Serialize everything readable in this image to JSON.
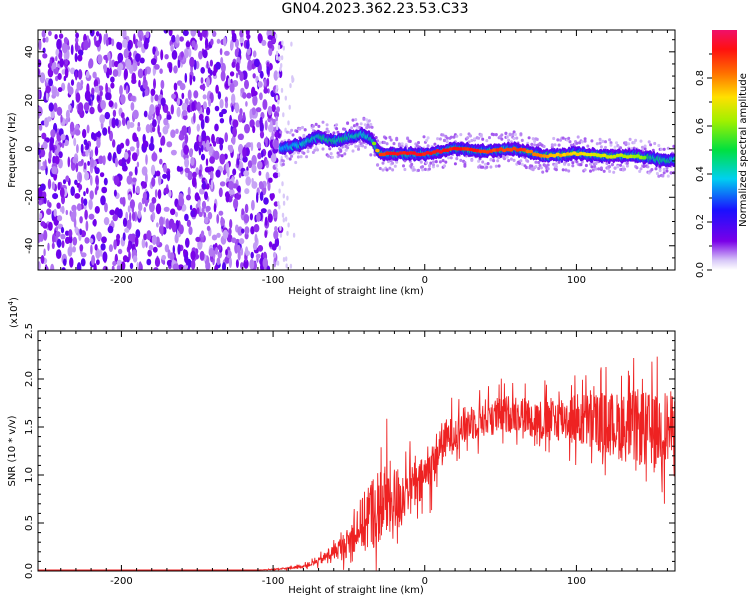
{
  "title": "GN04.2023.362.23.53.C33",
  "colors": {
    "snr_line": "#ee2222",
    "axis": "#000000"
  },
  "chart_data": [
    {
      "type": "heatmap",
      "xlabel": "Height of straight line (km)",
      "ylabel": "Frequency (Hz)",
      "xlim": [
        -255,
        165
      ],
      "ylim": [
        -50,
        49
      ],
      "x_ticks": [
        -200,
        -100,
        0,
        100
      ],
      "x_tick_labels": [
        "-200",
        "-100",
        "0",
        "100"
      ],
      "y_ticks": [
        -40,
        -20,
        0,
        20,
        40
      ],
      "y_tick_labels": [
        "-40",
        "-20",
        "0",
        "20",
        "40"
      ],
      "colorbar": {
        "label": "Normalized spectral amplitude",
        "range": [
          0,
          1
        ],
        "ticks": [
          0.0,
          0.2,
          0.4,
          0.6,
          0.8
        ],
        "tick_labels": [
          "0.0",
          "0.2",
          "0.4",
          "0.6",
          "0.8"
        ],
        "colormap": "rainbow (white → purple → blue → cyan → green → yellow → red → magenta)"
      },
      "noise_region": {
        "x": [
          -255,
          -95
        ],
        "y": [
          -50,
          49
        ],
        "amplitude": 0.15
      },
      "signal_ridge": {
        "x": [
          -95,
          -80,
          -70,
          -60,
          -50,
          -40,
          -35,
          -30,
          -20,
          0,
          20,
          40,
          60,
          80,
          100,
          120,
          140,
          160,
          165
        ],
        "frequency": [
          0,
          2,
          5,
          3,
          5,
          6,
          4,
          -2,
          -2,
          -2,
          0,
          -1,
          0,
          -3,
          -2,
          -3,
          -3,
          -5,
          -4
        ],
        "amplitude": [
          0.4,
          0.45,
          0.5,
          0.5,
          0.5,
          0.45,
          0.5,
          0.9,
          0.95,
          0.95,
          0.95,
          0.9,
          0.9,
          0.8,
          0.75,
          0.7,
          0.65,
          0.5,
          0.45
        ]
      }
    },
    {
      "type": "line",
      "xlabel": "Height of straight line (km)",
      "ylabel": "SNR (10 * v/v)",
      "y_multiplier": "(x10",
      "y_multiplier_exp": "4",
      "xlim": [
        -255,
        165
      ],
      "ylim": [
        0,
        2.5
      ],
      "x_ticks": [
        -200,
        -100,
        0,
        100
      ],
      "x_tick_labels": [
        "-200",
        "-100",
        "0",
        "100"
      ],
      "y_ticks": [
        0,
        0.5,
        1.0,
        1.5,
        2.0,
        2.5
      ],
      "y_tick_labels": [
        "0.0",
        "0.5",
        "1.0",
        "1.5",
        "2.0",
        "2.5"
      ],
      "series": [
        {
          "x": [
            -255,
            -150,
            -110,
            -95,
            -80,
            -70,
            -60,
            -50,
            -45,
            -40,
            -35,
            -30,
            -25,
            -20,
            -15,
            -10,
            -5,
            0,
            5,
            10,
            20,
            30,
            40,
            50,
            60,
            70,
            80,
            90,
            100,
            110,
            120,
            130,
            140,
            150,
            160,
            165
          ],
          "y": [
            0.01,
            0.01,
            0.01,
            0.02,
            0.05,
            0.1,
            0.2,
            0.3,
            0.45,
            0.5,
            0.6,
            0.7,
            0.75,
            0.7,
            0.8,
            0.9,
            0.85,
            1.0,
            1.1,
            1.3,
            1.45,
            1.55,
            1.6,
            1.62,
            1.65,
            1.6,
            1.55,
            1.6,
            1.58,
            1.55,
            1.55,
            1.5,
            1.5,
            1.45,
            1.5,
            1.45
          ],
          "noise_amplitude": [
            0,
            0,
            0,
            0.01,
            0.02,
            0.05,
            0.1,
            0.2,
            0.3,
            0.4,
            0.5,
            0.5,
            0.55,
            0.5,
            0.4,
            0.3,
            0.3,
            0.3,
            0.3,
            0.3,
            0.25,
            0.25,
            0.25,
            0.25,
            0.25,
            0.25,
            0.3,
            0.3,
            0.35,
            0.4,
            0.4,
            0.45,
            0.5,
            0.5,
            0.5,
            0.5
          ]
        }
      ]
    }
  ]
}
